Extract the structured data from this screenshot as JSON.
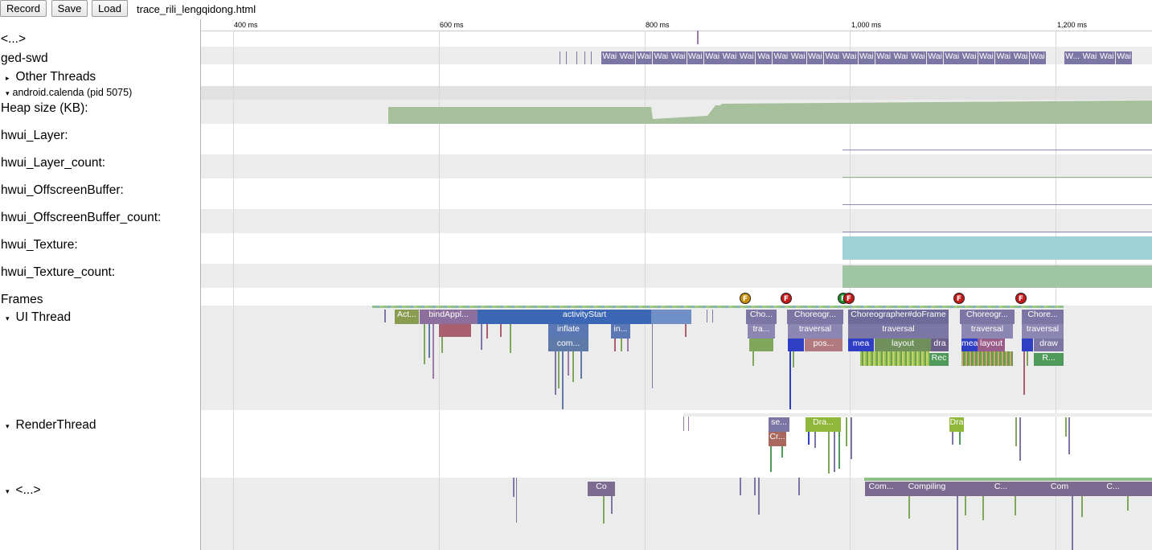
{
  "toolbar": {
    "record_label": "Record",
    "save_label": "Save",
    "load_label": "Load",
    "filename": "trace_rili_lengqidong.html"
  },
  "ruler": {
    "ticks": [
      "400 ms",
      "600 ms",
      "800 ms",
      "1,000 ms",
      "1,200 ms"
    ]
  },
  "tracks": {
    "top_collapsed": "<...>",
    "ged_swd": "ged-swd",
    "other_threads": "Other Threads",
    "process_header": "android.calenda (pid 5075)",
    "heap_size": "Heap size (KB):",
    "hwui_layer": "hwui_Layer:",
    "hwui_layer_count": "hwui_Layer_count:",
    "hwui_offscreen": "hwui_OffscreenBuffer:",
    "hwui_offscreen_count": "hwui_OffscreenBuffer_count:",
    "hwui_texture": "hwui_Texture:",
    "hwui_texture_count": "hwui_Texture_count:",
    "frames": "Frames",
    "ui_thread": "UI Thread",
    "render_thread": "RenderThread",
    "bottom_collapsed": "<...>"
  },
  "ged_slices": [
    "Wai",
    "Wai",
    "Wai",
    "Wai",
    "Wai",
    "Wai",
    "Wai",
    "Wai",
    "Wai",
    "Wa",
    "Wai",
    "Wai",
    "Wai",
    "Wai",
    "Wai",
    "Wai",
    "Wai",
    "Wai",
    "Wai",
    "Wai",
    "Wai",
    "Wai",
    "Wai",
    "Wai",
    "Wai",
    "Wai",
    "W...",
    "Wai",
    "Wai",
    "Wai"
  ],
  "ui_slices": {
    "act": "Act...",
    "bind_app": "bindAppl...",
    "activity_start": "activityStart",
    "inflate": "inflate",
    "in": "in...",
    "com": "com...",
    "cho1": "Cho...",
    "tra1": "tra...",
    "choreo2": "Choreogr...",
    "traversal2": "traversal",
    "pos": "pos...",
    "choreo_doframe": "Choreographer#doFrame",
    "traversal3": "traversal",
    "mea3": "mea",
    "layout3": "layout",
    "dra3": "dra",
    "rec3": "Rec",
    "choreo4": "Choreogr...",
    "traversal4": "traversal",
    "mea4": "mea",
    "layout4": "layout",
    "chore5": "Chore...",
    "traversal5": "traversal",
    "draw5": "draw",
    "r5": "R..."
  },
  "render_slices": {
    "se": "se...",
    "dra1": "Dra...",
    "cr": "Cr...",
    "dra2": "Dra"
  },
  "bottom_slices": {
    "co": "Co",
    "com1": "Com...",
    "compiling": "Compiling",
    "c1": "C...",
    "com2": "Com",
    "c2": "C..."
  },
  "frame_markers": [
    "F",
    "F",
    "F",
    "F",
    "F",
    "F"
  ],
  "colors": {
    "heap": "#a6c09b",
    "texture": "#9ed2d6",
    "texture_count": "#9fc5a2",
    "activity_start": "#3b67b5",
    "slice_purple": "#7c76a4",
    "marker_red": "#c41a1a",
    "marker_yellow": "#c8900a",
    "marker_green": "#1f8a2a"
  }
}
